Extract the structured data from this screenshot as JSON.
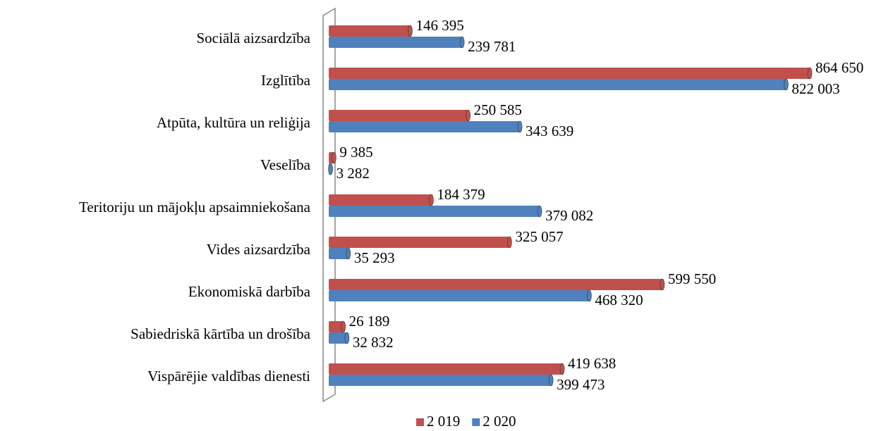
{
  "chart_data": {
    "type": "bar",
    "orientation": "horizontal",
    "categories": [
      "Sociālā aizsardzība",
      "Izglītība",
      "Atpūta, kultūra un reliģija",
      "Veselība",
      "Teritoriju un mājokļu apsaimniekošana",
      "Vides aizsardzība",
      "Ekonomiskā darbība",
      "Sabiedriskā kārtība un drošība",
      "Vispārējie valdības dienesti"
    ],
    "series": [
      {
        "name": "2 019",
        "color": "#c0504d",
        "values": [
          146395,
          864650,
          250585,
          9385,
          184379,
          325057,
          599550,
          26189,
          419638
        ],
        "value_labels": [
          "146 395",
          "864 650",
          "250 585",
          "9 385",
          "184 379",
          "325 057",
          "599 550",
          "26 189",
          "419 638"
        ]
      },
      {
        "name": "2 020",
        "color": "#4f81bd",
        "values": [
          239781,
          822003,
          343639,
          3282,
          379082,
          35293,
          468320,
          32832,
          399473
        ],
        "value_labels": [
          "239 781",
          "822 003",
          "343 639",
          "3 282",
          "379 082",
          "35 293",
          "468 320",
          "32 832",
          "399 473"
        ]
      }
    ],
    "legend": "bottom"
  }
}
